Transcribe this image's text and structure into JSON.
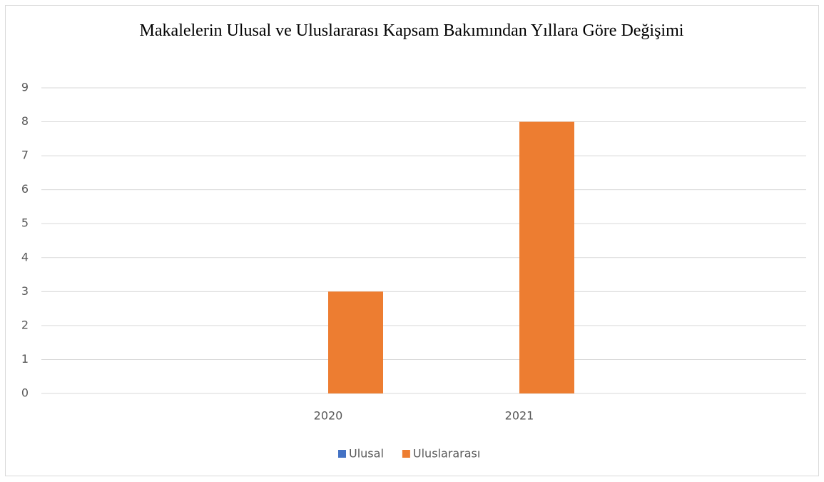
{
  "chart_data": {
    "type": "bar",
    "title": "Makalelerin Ulusal ve Uluslararası Kapsam Bakımından Yıllara Göre Değişimi",
    "categories": [
      null,
      "2020",
      "2021",
      null
    ],
    "series": [
      {
        "name": "Ulusal",
        "color": "#4472c4",
        "values": [
          null,
          0,
          0,
          null
        ]
      },
      {
        "name": "Uluslararası",
        "color": "#ed7d31",
        "values": [
          null,
          3,
          8,
          null
        ]
      }
    ],
    "ylim": [
      0,
      9
    ],
    "yticks": [
      0,
      1,
      2,
      3,
      4,
      5,
      6,
      7,
      8,
      9
    ],
    "grid": true,
    "legend": "bottom"
  }
}
